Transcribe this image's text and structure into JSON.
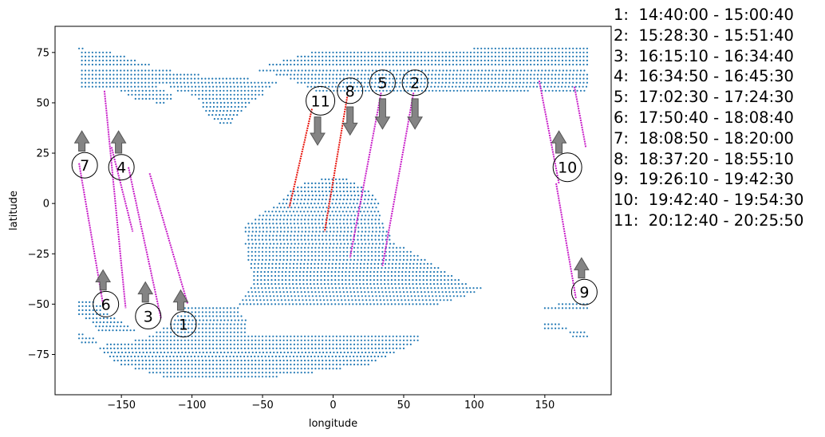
{
  "chart_data": {
    "type": "scatter",
    "xlabel": "longitude",
    "ylabel": "latitude",
    "xlim": [
      -197,
      197
    ],
    "ylim": [
      -95,
      88
    ],
    "x_ticks": [
      -150,
      -100,
      -50,
      0,
      50,
      100,
      150
    ],
    "y_ticks": [
      -75,
      -50,
      -25,
      0,
      25,
      50,
      75
    ],
    "x_tick_labels": [
      "−150",
      "−100",
      "−50",
      "0",
      "50",
      "100",
      "150"
    ],
    "y_tick_labels": [
      "−75",
      "−50",
      "−25",
      "0",
      "25",
      "50",
      "75"
    ],
    "grid": false,
    "colors": {
      "land_points": "#1f77b4",
      "track_magenta": "#c81ec8",
      "track_red": "#e8140c",
      "arrow": "#6e6e6e",
      "axes": "#000000"
    },
    "land_grid_spacing": [
      2.5,
      1.6
    ],
    "land_regions": [
      {
        "name": "north band",
        "rows": [
          [
            77,
            -180,
            -176
          ],
          [
            75,
            -178,
            -157
          ],
          [
            73,
            -178,
            -147
          ],
          [
            71,
            -178,
            -140
          ],
          [
            69,
            -178,
            -130
          ],
          [
            66,
            -178,
            -115
          ],
          [
            64,
            -178,
            -95
          ],
          [
            62,
            -178,
            -60
          ],
          [
            60,
            -178,
            -40
          ],
          [
            58,
            -178,
            -125
          ],
          [
            58,
            -115,
            -45
          ],
          [
            56,
            -150,
            -120
          ],
          [
            56,
            -110,
            -48
          ],
          [
            54,
            -145,
            -115
          ],
          [
            54,
            -100,
            -50
          ],
          [
            52,
            -140,
            -115
          ],
          [
            52,
            -95,
            -55
          ],
          [
            50,
            -125,
            -118
          ],
          [
            50,
            -92,
            -58
          ],
          [
            48,
            -92,
            -62
          ],
          [
            46,
            -90,
            -65
          ],
          [
            44,
            -88,
            -67
          ],
          [
            42,
            -84,
            -70
          ],
          [
            40,
            -80,
            -72
          ],
          [
            77,
            100,
            180
          ],
          [
            75,
            -15,
            180
          ],
          [
            73,
            -25,
            180
          ],
          [
            71,
            -35,
            180
          ],
          [
            69,
            -45,
            180
          ],
          [
            66,
            -52,
            180
          ],
          [
            64,
            -40,
            180
          ],
          [
            62,
            -30,
            180
          ],
          [
            60,
            -25,
            180
          ],
          [
            58,
            -18,
            180
          ],
          [
            56,
            -12,
            140
          ],
          [
            56,
            148,
            180
          ]
        ]
      },
      {
        "name": "central landmass",
        "rows": [
          [
            12,
            -8,
            10
          ],
          [
            10,
            -20,
            15
          ],
          [
            8,
            -25,
            20
          ],
          [
            6,
            -30,
            25
          ],
          [
            4,
            -32,
            28
          ],
          [
            2,
            -35,
            30
          ],
          [
            0,
            -38,
            32
          ],
          [
            -2,
            -42,
            32
          ],
          [
            -4,
            -48,
            32
          ],
          [
            -6,
            -52,
            34
          ],
          [
            -8,
            -55,
            34
          ],
          [
            -10,
            -60,
            36
          ],
          [
            -12,
            -62,
            36
          ],
          [
            -14,
            -62,
            38
          ],
          [
            -16,
            -60,
            40
          ],
          [
            -18,
            -60,
            42
          ],
          [
            -20,
            -62,
            44
          ],
          [
            -22,
            -60,
            50
          ],
          [
            -24,
            -60,
            55
          ],
          [
            -26,
            -60,
            60
          ],
          [
            -28,
            -60,
            65
          ],
          [
            -30,
            -58,
            70
          ],
          [
            -32,
            -58,
            75
          ],
          [
            -34,
            -56,
            80
          ],
          [
            -36,
            -56,
            85
          ],
          [
            -38,
            -56,
            90
          ],
          [
            -40,
            -56,
            95
          ],
          [
            -42,
            -58,
            105
          ],
          [
            -44,
            -60,
            100
          ],
          [
            -46,
            -62,
            95
          ],
          [
            -48,
            -64,
            85
          ],
          [
            -50,
            -66,
            75
          ]
        ]
      },
      {
        "name": "south band",
        "rows": [
          [
            -49,
            -180,
            -168
          ],
          [
            -51,
            -180,
            -165
          ],
          [
            -53,
            -180,
            -163
          ],
          [
            -55,
            -180,
            -160
          ],
          [
            -57,
            -175,
            -155
          ],
          [
            -59,
            -170,
            -150
          ],
          [
            -61,
            -168,
            -145
          ],
          [
            -63,
            -166,
            -140
          ],
          [
            -52,
            -105,
            -66
          ],
          [
            -54,
            -105,
            -66
          ],
          [
            -56,
            -110,
            -64
          ],
          [
            -58,
            -112,
            -62
          ],
          [
            -60,
            -115,
            -62
          ],
          [
            -62,
            -120,
            -62
          ],
          [
            -64,
            -125,
            -62
          ],
          [
            -66,
            -130,
            60
          ],
          [
            -68,
            -140,
            60
          ],
          [
            -70,
            -160,
            55
          ],
          [
            -72,
            -165,
            50
          ],
          [
            -74,
            -162,
            45
          ],
          [
            -76,
            -158,
            38
          ],
          [
            -78,
            -155,
            30
          ],
          [
            -80,
            -150,
            25
          ],
          [
            -82,
            -140,
            5
          ],
          [
            -84,
            -130,
            -15
          ],
          [
            -86,
            -120,
            -40
          ],
          [
            -65,
            -180,
            -176
          ],
          [
            -67,
            -180,
            -170
          ],
          [
            -69,
            -178,
            -168
          ],
          [
            -52,
            150,
            180
          ],
          [
            -50,
            160,
            180
          ],
          [
            -60,
            150,
            162
          ],
          [
            -62,
            150,
            165
          ],
          [
            -64,
            168,
            180
          ],
          [
            -66,
            170,
            180
          ]
        ]
      }
    ],
    "series": [
      {
        "id": 1,
        "color": "magenta",
        "x": [
          -130,
          -103
        ],
        "y": [
          15,
          -50
        ]
      },
      {
        "id": 2,
        "color": "magenta",
        "x": [
          57,
          35
        ],
        "y": [
          55,
          -31
        ]
      },
      {
        "id": 3,
        "color": "magenta",
        "x": [
          -145,
          -122
        ],
        "y": [
          18,
          -57
        ]
      },
      {
        "id": 4,
        "color": "magenta",
        "x": [
          -157,
          -142
        ],
        "y": [
          28,
          -14
        ]
      },
      {
        "id": 5,
        "color": "magenta",
        "x": [
          34,
          12
        ],
        "y": [
          55,
          -27
        ]
      },
      {
        "id": 6,
        "color": "magenta",
        "x": [
          -162,
          -147
        ],
        "y": [
          56,
          -52
        ]
      },
      {
        "id": 7,
        "color": "magenta",
        "x": [
          -180,
          -163
        ],
        "y": [
          20,
          -50
        ]
      },
      {
        "id": 8,
        "color": "red",
        "x": [
          10,
          -6
        ],
        "y": [
          53,
          -14
        ]
      },
      {
        "id": 9,
        "color": "magenta",
        "x": [
          158,
          172
        ],
        "y": [
          10,
          -47
        ]
      },
      {
        "id": 10,
        "color": "magenta",
        "x": [
          146,
          160
        ],
        "y": [
          61,
          10
        ]
      },
      {
        "id": 11,
        "color": "red",
        "x": [
          -15,
          -31
        ],
        "y": [
          47,
          -2
        ]
      }
    ],
    "extra_track": {
      "color": "magenta",
      "x": [
        171,
        179
      ],
      "y": [
        58,
        28
      ]
    },
    "annotations": [
      {
        "label": "1",
        "x": -106,
        "y": -60,
        "arrow": "up",
        "arrow_x": -108,
        "arrow_y0": -53,
        "arrow_y1": -43
      },
      {
        "label": "2",
        "x": 58,
        "y": 60,
        "arrow": "down",
        "arrow_x": 58,
        "arrow_y0": 52,
        "arrow_y1": 37
      },
      {
        "label": "3",
        "x": -131,
        "y": -56,
        "arrow": "up",
        "arrow_x": -133,
        "arrow_y0": -49,
        "arrow_y1": -39
      },
      {
        "label": "4",
        "x": -150,
        "y": 18,
        "arrow": "up",
        "arrow_x": -152,
        "arrow_y0": 25,
        "arrow_y1": 36
      },
      {
        "label": "5",
        "x": 35,
        "y": 60,
        "arrow": "down",
        "arrow_x": 35,
        "arrow_y0": 52,
        "arrow_y1": 37
      },
      {
        "label": "6",
        "x": -161,
        "y": -50,
        "arrow": "up",
        "arrow_x": -163,
        "arrow_y0": -43,
        "arrow_y1": -33
      },
      {
        "label": "7",
        "x": -176,
        "y": 19,
        "arrow": "up",
        "arrow_x": -178,
        "arrow_y0": 26,
        "arrow_y1": 36
      },
      {
        "label": "8",
        "x": 12,
        "y": 56,
        "arrow": "down",
        "arrow_x": 12,
        "arrow_y0": 48,
        "arrow_y1": 34
      },
      {
        "label": "9",
        "x": 178,
        "y": -44,
        "arrow": "up",
        "arrow_x": 176,
        "arrow_y0": -37,
        "arrow_y1": -27
      },
      {
        "label": "10",
        "x": 166,
        "y": 18,
        "arrow": "up",
        "arrow_x": 160,
        "arrow_y0": 25,
        "arrow_y1": 36
      },
      {
        "label": "11",
        "x": -9,
        "y": 51,
        "arrow": "down",
        "arrow_x": -11,
        "arrow_y0": 43,
        "arrow_y1": 29
      }
    ],
    "legend": [
      "1:  14:40:00 - 15:00:40",
      "2:  15:28:30 - 15:51:40",
      "3:  16:15:10 - 16:34:40",
      "4:  16:34:50 - 16:45:30",
      "5:  17:02:30 - 17:24:30",
      "6:  17:50:40 - 18:08:40",
      "7:  18:08:50 - 18:20:00",
      "8:  18:37:20 - 18:55:10",
      "9:  19:26:10 - 19:42:30",
      "10:  19:42:40 - 19:54:30",
      "11:  20:12:40 - 20:25:50"
    ],
    "legend_placement": "right"
  }
}
